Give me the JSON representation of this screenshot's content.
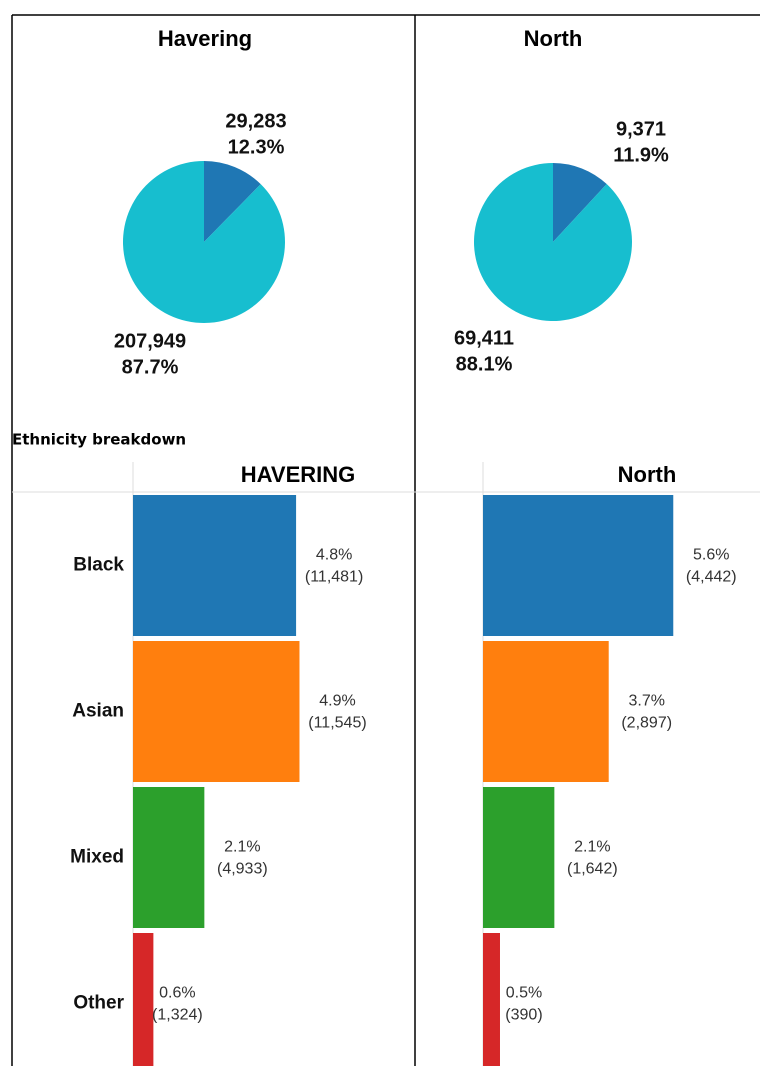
{
  "chart_data": [
    {
      "type": "pie",
      "title": "Havering",
      "values": [
        29283,
        207949
      ],
      "value_labels": [
        "29,283",
        "207,949"
      ],
      "shares": [
        12.3,
        87.7
      ],
      "share_labels": [
        "12.3%",
        "87.7%"
      ],
      "colors": [
        "#1f77b4",
        "#17becf"
      ]
    },
    {
      "type": "pie",
      "title": "North",
      "values": [
        9371,
        69411
      ],
      "value_labels": [
        "9,371",
        "69,411"
      ],
      "shares": [
        11.9,
        88.1
      ],
      "share_labels": [
        "11.9%",
        "88.1%"
      ],
      "colors": [
        "#1f77b4",
        "#17becf"
      ]
    },
    {
      "type": "bar",
      "orientation": "horizontal",
      "title": "HAVERING",
      "categories": [
        "Black",
        "Asian",
        "Mixed",
        "Other"
      ],
      "values": [
        4.8,
        4.9,
        2.1,
        0.6
      ],
      "value_labels": [
        "4.8%",
        "4.9%",
        "2.1%",
        "0.6%"
      ],
      "counts": [
        11481,
        11545,
        4933,
        1324
      ],
      "count_labels": [
        "(11,481)",
        "(11,545)",
        "(4,933)",
        "(1,324)"
      ],
      "colors": [
        "#1f77b4",
        "#ff7f0e",
        "#2ca02c",
        "#d62728"
      ],
      "xlim": [
        0,
        8.3
      ]
    },
    {
      "type": "bar",
      "orientation": "horizontal",
      "title": "North",
      "categories": [
        null,
        null,
        null,
        null
      ],
      "values": [
        5.6,
        3.7,
        2.1,
        0.5
      ],
      "value_labels": [
        "5.6%",
        "3.7%",
        "2.1%",
        "0.5%"
      ],
      "counts": [
        4442,
        2897,
        1642,
        390
      ],
      "count_labels": [
        "(4,442)",
        "(2,897)",
        "(1,642)",
        "(390)"
      ],
      "colors": [
        "#1f77b4",
        "#ff7f0e",
        "#2ca02c",
        "#d62728"
      ],
      "xlim": [
        0,
        8.3
      ]
    }
  ],
  "section_label": "Ethnicity breakdown"
}
